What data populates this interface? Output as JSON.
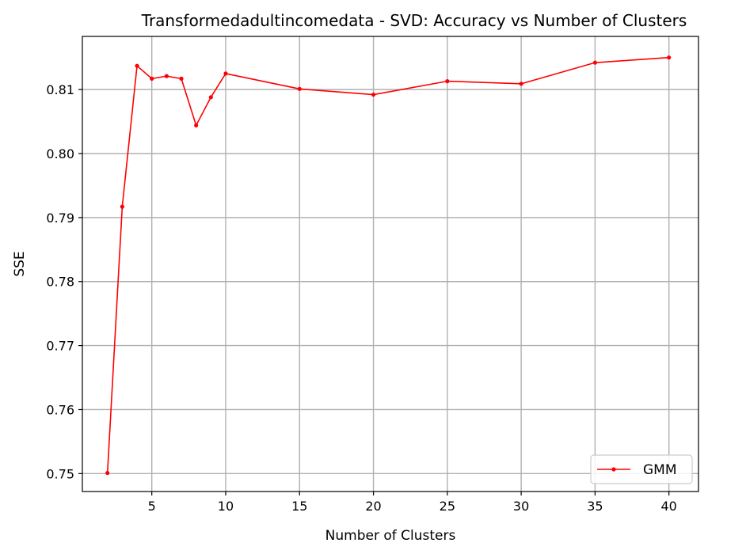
{
  "chart_data": {
    "type": "line",
    "title": "Transformedadultincomedata - SVD: Accuracy vs Number of Clusters",
    "xlabel": "Number of Clusters",
    "ylabel": "SSE",
    "xlim": [
      0.3,
      42
    ],
    "ylim": [
      0.7472,
      0.8183
    ],
    "xticks": [
      5,
      10,
      15,
      20,
      25,
      30,
      35,
      40
    ],
    "xtick_labels": [
      "5",
      "10",
      "15",
      "20",
      "25",
      "30",
      "35",
      "40"
    ],
    "yticks": [
      0.75,
      0.76,
      0.77,
      0.78,
      0.79,
      0.8,
      0.81
    ],
    "ytick_labels": [
      "0.75",
      "0.76",
      "0.77",
      "0.78",
      "0.79",
      "0.80",
      "0.81"
    ],
    "grid": true,
    "legend": {
      "position": "bottom-right"
    },
    "series": [
      {
        "name": "GMM",
        "color": "#ff0000",
        "marker": "dot",
        "x": [
          2,
          3,
          4,
          5,
          6,
          7,
          8,
          9,
          10,
          15,
          20,
          25,
          30,
          35,
          40
        ],
        "y": [
          0.7501,
          0.7917,
          0.8137,
          0.8117,
          0.8121,
          0.8117,
          0.8044,
          0.8088,
          0.8125,
          0.8101,
          0.8092,
          0.8113,
          0.8109,
          0.8142,
          0.815
        ]
      }
    ]
  }
}
